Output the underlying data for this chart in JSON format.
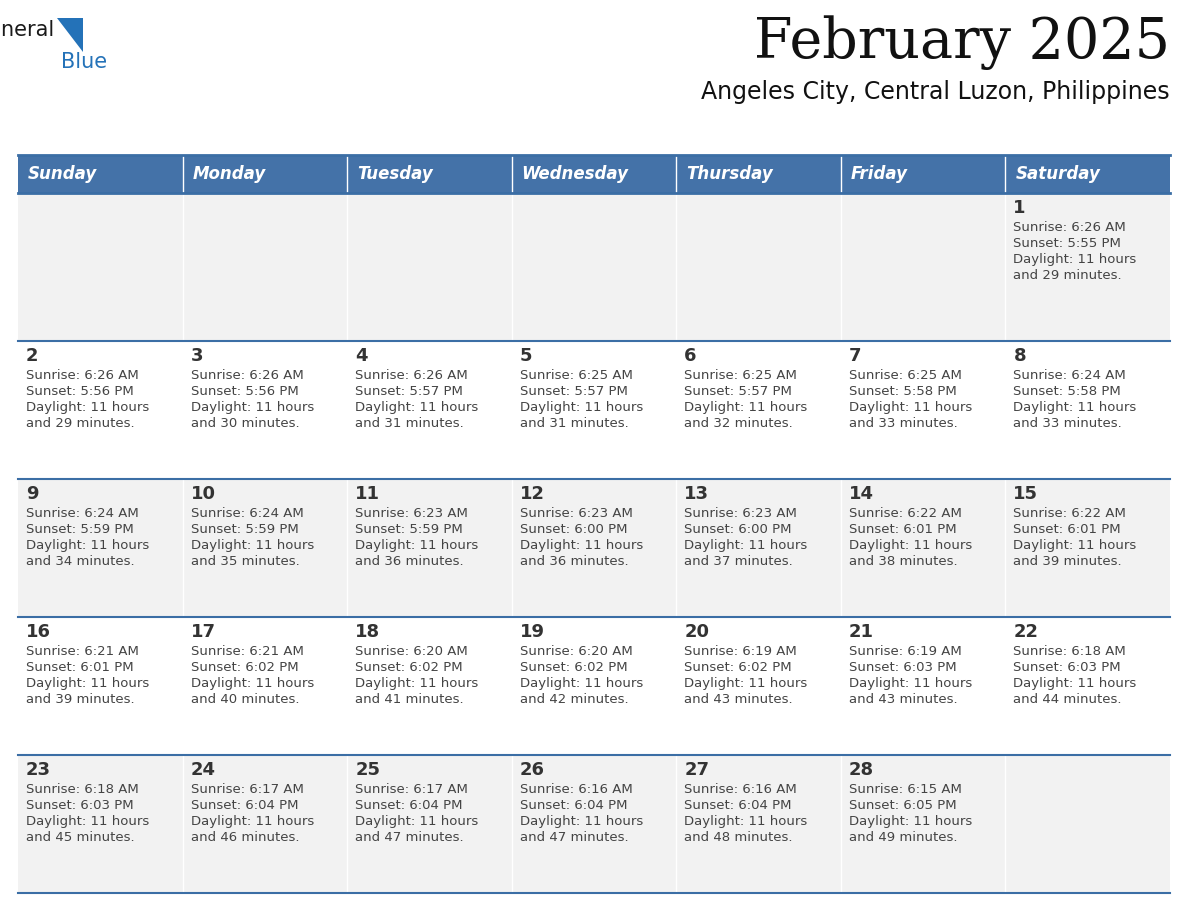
{
  "title": "February 2025",
  "subtitle": "Angeles City, Central Luzon, Philippines",
  "header_color": "#4472A8",
  "header_text_color": "#FFFFFF",
  "day_names": [
    "Sunday",
    "Monday",
    "Tuesday",
    "Wednesday",
    "Thursday",
    "Friday",
    "Saturday"
  ],
  "cell_bg_row0": "#F2F2F2",
  "cell_bg_row1": "#FFFFFF",
  "cell_bg_row2": "#F2F2F2",
  "cell_bg_row3": "#FFFFFF",
  "cell_bg_row4": "#F2F2F2",
  "divider_color": "#3B6EA5",
  "text_color": "#444444",
  "day_num_color": "#333333",
  "logo_general_color": "#1a1a1a",
  "logo_blue_color": "#2472B8",
  "logo_tri_color": "#2472B8",
  "days": [
    {
      "day": 1,
      "col": 6,
      "row": 0,
      "sunrise": "6:26 AM",
      "sunset": "5:55 PM",
      "daylight": "11 hours and 29 minutes"
    },
    {
      "day": 2,
      "col": 0,
      "row": 1,
      "sunrise": "6:26 AM",
      "sunset": "5:56 PM",
      "daylight": "11 hours and 29 minutes"
    },
    {
      "day": 3,
      "col": 1,
      "row": 1,
      "sunrise": "6:26 AM",
      "sunset": "5:56 PM",
      "daylight": "11 hours and 30 minutes"
    },
    {
      "day": 4,
      "col": 2,
      "row": 1,
      "sunrise": "6:26 AM",
      "sunset": "5:57 PM",
      "daylight": "11 hours and 31 minutes"
    },
    {
      "day": 5,
      "col": 3,
      "row": 1,
      "sunrise": "6:25 AM",
      "sunset": "5:57 PM",
      "daylight": "11 hours and 31 minutes"
    },
    {
      "day": 6,
      "col": 4,
      "row": 1,
      "sunrise": "6:25 AM",
      "sunset": "5:57 PM",
      "daylight": "11 hours and 32 minutes"
    },
    {
      "day": 7,
      "col": 5,
      "row": 1,
      "sunrise": "6:25 AM",
      "sunset": "5:58 PM",
      "daylight": "11 hours and 33 minutes"
    },
    {
      "day": 8,
      "col": 6,
      "row": 1,
      "sunrise": "6:24 AM",
      "sunset": "5:58 PM",
      "daylight": "11 hours and 33 minutes"
    },
    {
      "day": 9,
      "col": 0,
      "row": 2,
      "sunrise": "6:24 AM",
      "sunset": "5:59 PM",
      "daylight": "11 hours and 34 minutes"
    },
    {
      "day": 10,
      "col": 1,
      "row": 2,
      "sunrise": "6:24 AM",
      "sunset": "5:59 PM",
      "daylight": "11 hours and 35 minutes"
    },
    {
      "day": 11,
      "col": 2,
      "row": 2,
      "sunrise": "6:23 AM",
      "sunset": "5:59 PM",
      "daylight": "11 hours and 36 minutes"
    },
    {
      "day": 12,
      "col": 3,
      "row": 2,
      "sunrise": "6:23 AM",
      "sunset": "6:00 PM",
      "daylight": "11 hours and 36 minutes"
    },
    {
      "day": 13,
      "col": 4,
      "row": 2,
      "sunrise": "6:23 AM",
      "sunset": "6:00 PM",
      "daylight": "11 hours and 37 minutes"
    },
    {
      "day": 14,
      "col": 5,
      "row": 2,
      "sunrise": "6:22 AM",
      "sunset": "6:01 PM",
      "daylight": "11 hours and 38 minutes"
    },
    {
      "day": 15,
      "col": 6,
      "row": 2,
      "sunrise": "6:22 AM",
      "sunset": "6:01 PM",
      "daylight": "11 hours and 39 minutes"
    },
    {
      "day": 16,
      "col": 0,
      "row": 3,
      "sunrise": "6:21 AM",
      "sunset": "6:01 PM",
      "daylight": "11 hours and 39 minutes"
    },
    {
      "day": 17,
      "col": 1,
      "row": 3,
      "sunrise": "6:21 AM",
      "sunset": "6:02 PM",
      "daylight": "11 hours and 40 minutes"
    },
    {
      "day": 18,
      "col": 2,
      "row": 3,
      "sunrise": "6:20 AM",
      "sunset": "6:02 PM",
      "daylight": "11 hours and 41 minutes"
    },
    {
      "day": 19,
      "col": 3,
      "row": 3,
      "sunrise": "6:20 AM",
      "sunset": "6:02 PM",
      "daylight": "11 hours and 42 minutes"
    },
    {
      "day": 20,
      "col": 4,
      "row": 3,
      "sunrise": "6:19 AM",
      "sunset": "6:02 PM",
      "daylight": "11 hours and 43 minutes"
    },
    {
      "day": 21,
      "col": 5,
      "row": 3,
      "sunrise": "6:19 AM",
      "sunset": "6:03 PM",
      "daylight": "11 hours and 43 minutes"
    },
    {
      "day": 22,
      "col": 6,
      "row": 3,
      "sunrise": "6:18 AM",
      "sunset": "6:03 PM",
      "daylight": "11 hours and 44 minutes"
    },
    {
      "day": 23,
      "col": 0,
      "row": 4,
      "sunrise": "6:18 AM",
      "sunset": "6:03 PM",
      "daylight": "11 hours and 45 minutes"
    },
    {
      "day": 24,
      "col": 1,
      "row": 4,
      "sunrise": "6:17 AM",
      "sunset": "6:04 PM",
      "daylight": "11 hours and 46 minutes"
    },
    {
      "day": 25,
      "col": 2,
      "row": 4,
      "sunrise": "6:17 AM",
      "sunset": "6:04 PM",
      "daylight": "11 hours and 47 minutes"
    },
    {
      "day": 26,
      "col": 3,
      "row": 4,
      "sunrise": "6:16 AM",
      "sunset": "6:04 PM",
      "daylight": "11 hours and 47 minutes"
    },
    {
      "day": 27,
      "col": 4,
      "row": 4,
      "sunrise": "6:16 AM",
      "sunset": "6:04 PM",
      "daylight": "11 hours and 48 minutes"
    },
    {
      "day": 28,
      "col": 5,
      "row": 4,
      "sunrise": "6:15 AM",
      "sunset": "6:05 PM",
      "daylight": "11 hours and 49 minutes"
    }
  ]
}
